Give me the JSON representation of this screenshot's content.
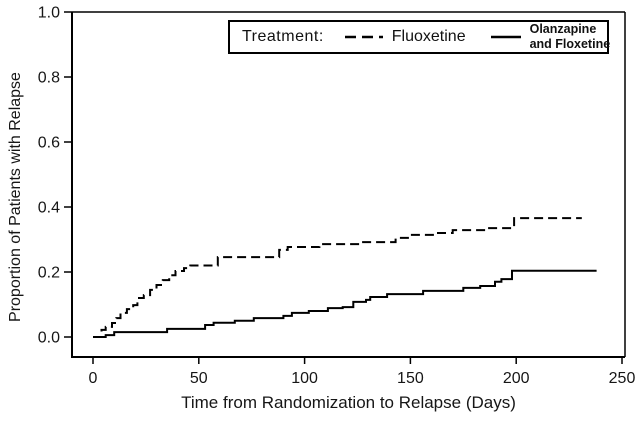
{
  "figure": {
    "background": "#ffffff",
    "ink": "#000000",
    "text_color": "#161616"
  },
  "legend": {
    "title": "Treatment:",
    "series1_label": "Fluoxetine",
    "series2_label_line1": "Olanzapine",
    "series2_label_line2": "and Floxetine"
  },
  "chart_data": {
    "type": "line",
    "subtype": "kaplan-meier-step",
    "title": "",
    "xlabel": "Time from Randomization to Relapse (Days)",
    "ylabel": "Proportion of Patients with Relapse",
    "xlim": [
      0,
      250
    ],
    "ylim": [
      0,
      1.0
    ],
    "x_ticks": [
      "0",
      "50",
      "100",
      "150",
      "200",
      "250"
    ],
    "y_ticks": [
      "0.0",
      "0.2",
      "0.4",
      "0.6",
      "0.8",
      "1.0"
    ],
    "grid": false,
    "legend_position": "top-center-inside",
    "series": [
      {
        "name": "Fluoxetine",
        "line_style": "dashed",
        "color": "#000000",
        "points": [
          [
            0,
            0
          ],
          [
            4,
            0.022
          ],
          [
            6,
            0.031
          ],
          [
            9,
            0.043
          ],
          [
            11,
            0.058
          ],
          [
            13,
            0.074
          ],
          [
            16,
            0.086
          ],
          [
            19,
            0.098
          ],
          [
            21,
            0.12
          ],
          [
            24,
            0.129
          ],
          [
            27,
            0.145
          ],
          [
            30,
            0.16
          ],
          [
            33,
            0.175
          ],
          [
            36,
            0.19
          ],
          [
            39,
            0.203
          ],
          [
            43,
            0.212
          ],
          [
            46,
            0.22
          ],
          [
            59,
            0.246
          ],
          [
            88,
            0.268
          ],
          [
            92,
            0.277
          ],
          [
            107,
            0.286
          ],
          [
            126,
            0.292
          ],
          [
            143,
            0.305
          ],
          [
            150,
            0.314
          ],
          [
            162,
            0.32
          ],
          [
            170,
            0.329
          ],
          [
            186,
            0.335
          ],
          [
            199,
            0.366
          ],
          [
            231,
            0.366
          ]
        ]
      },
      {
        "name": "Olanzapine and Floxetine",
        "line_style": "solid",
        "color": "#000000",
        "points": [
          [
            0,
            0
          ],
          [
            6,
            0.006
          ],
          [
            10,
            0.015
          ],
          [
            35,
            0.025
          ],
          [
            53,
            0.037
          ],
          [
            57,
            0.044
          ],
          [
            67,
            0.05
          ],
          [
            76,
            0.058
          ],
          [
            90,
            0.065
          ],
          [
            94,
            0.074
          ],
          [
            102,
            0.08
          ],
          [
            111,
            0.089
          ],
          [
            118,
            0.092
          ],
          [
            123,
            0.108
          ],
          [
            129,
            0.114
          ],
          [
            131,
            0.123
          ],
          [
            139,
            0.132
          ],
          [
            156,
            0.142
          ],
          [
            175,
            0.151
          ],
          [
            183,
            0.157
          ],
          [
            190,
            0.17
          ],
          [
            193,
            0.178
          ],
          [
            198,
            0.204
          ],
          [
            238,
            0.204
          ]
        ]
      }
    ]
  }
}
